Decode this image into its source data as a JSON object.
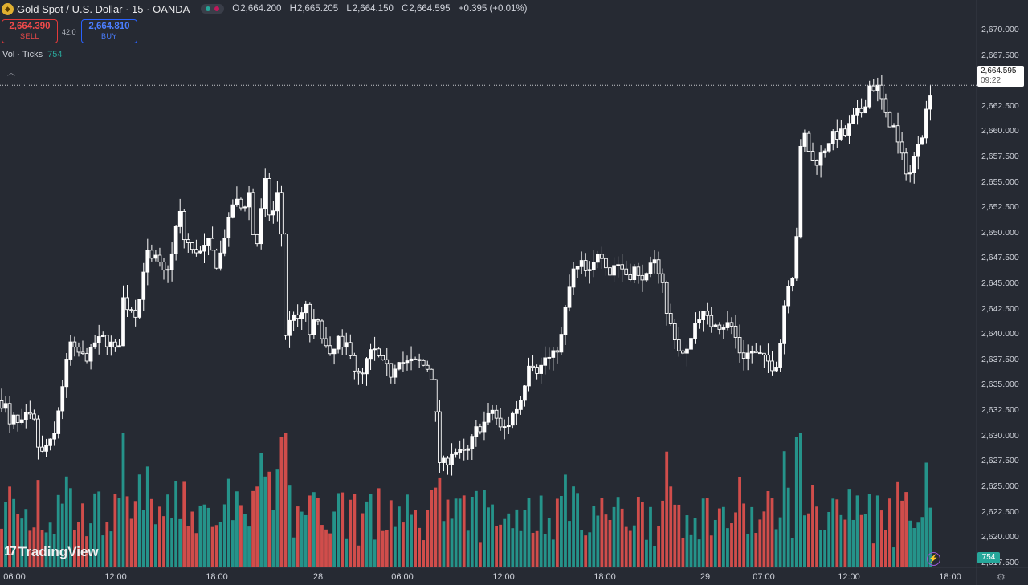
{
  "header": {
    "symbol_title": "Gold Spot / U.S. Dollar · 15 · OANDA",
    "ohlc": {
      "o_label": "O",
      "o": "2,664.200",
      "h_label": "H",
      "h": "2,665.205",
      "l_label": "L",
      "l": "2,664.150",
      "c_label": "C",
      "c": "2,664.595",
      "change": "+0.395 (+0.01%)"
    },
    "sell_price": "2,664.390",
    "sell_label": "SELL",
    "buy_price": "2,664.810",
    "buy_label": "BUY",
    "spread": "42.0",
    "volume_label": "Vol · Ticks",
    "volume_value": "754",
    "logo_text": "TradingView",
    "colors": {
      "up": "#ffffff",
      "up_vol": "#26a69a",
      "down_vol": "#ef5350",
      "sell": "#f04a4a",
      "buy": "#4a7dff",
      "background": "#262a33"
    }
  },
  "price_axis": {
    "ticks": [
      "2,670.000",
      "2,667.500",
      "2,665.000",
      "2,662.500",
      "2,660.000",
      "2,657.500",
      "2,655.000",
      "2,652.500",
      "2,650.000",
      "2,647.500",
      "2,645.000",
      "2,642.500",
      "2,640.000",
      "2,637.500",
      "2,635.000",
      "2,632.500",
      "2,630.000",
      "2,627.500",
      "2,625.000",
      "2,622.500",
      "2,620.000",
      "2,617.500"
    ],
    "last_price": "2,664.595",
    "countdown": "09:22",
    "volume_badge": "754"
  },
  "time_axis": {
    "labels": [
      "06:00",
      "12:00",
      "18:00",
      "28",
      "06:00",
      "12:00",
      "18:00",
      "29",
      "07:00",
      "12:00",
      "18:00"
    ]
  },
  "chart_data": {
    "type": "candlestick",
    "title": "Gold Spot / U.S. Dollar · 15 · OANDA",
    "ylim": [
      2615.5,
      2671.5
    ],
    "last_price": 2664.595,
    "close_path": [
      [
        0,
        2633.5
      ],
      [
        7,
        2633
      ],
      [
        10,
        2630.5
      ],
      [
        15,
        2631.5
      ],
      [
        20,
        2632
      ],
      [
        25,
        2630
      ],
      [
        30,
        2632.5
      ],
      [
        35,
        2631
      ],
      [
        40,
        2632.5
      ],
      [
        45,
        2630
      ],
      [
        50,
        2628
      ],
      [
        55,
        2628.5
      ],
      [
        60,
        2629.5
      ],
      [
        65,
        2629
      ],
      [
        70,
        2631
      ],
      [
        75,
        2634
      ],
      [
        80,
        2636
      ],
      [
        85,
        2638
      ],
      [
        90,
        2640
      ],
      [
        95,
        2637
      ],
      [
        100,
        2639
      ],
      [
        105,
        2637
      ],
      [
        110,
        2638.5
      ],
      [
        115,
        2638
      ],
      [
        120,
        2640
      ],
      [
        125,
        2639
      ],
      [
        130,
        2640
      ],
      [
        135,
        2639
      ],
      [
        140,
        2639
      ],
      [
        145,
        2638
      ],
      [
        150,
        2640
      ],
      [
        155,
        2645
      ],
      [
        160,
        2642
      ],
      [
        165,
        2643
      ],
      [
        170,
        2642
      ],
      [
        175,
        2644
      ],
      [
        180,
        2647.5
      ],
      [
        185,
        2648
      ],
      [
        190,
        2647
      ],
      [
        195,
        2647.5
      ],
      [
        200,
        2646.5
      ],
      [
        205,
        2646
      ],
      [
        210,
        2647
      ],
      [
        215,
        2648
      ],
      [
        220,
        2651
      ],
      [
        225,
        2652
      ],
      [
        230,
        2649
      ],
      [
        235,
        2649
      ],
      [
        240,
        2648
      ],
      [
        245,
        2648.5
      ],
      [
        250,
        2648
      ],
      [
        255,
        2648.5
      ],
      [
        260,
        2649
      ],
      [
        265,
        2648
      ],
      [
        270,
        2647
      ],
      [
        275,
        2648
      ],
      [
        280,
        2650
      ],
      [
        285,
        2651
      ],
      [
        290,
        2653
      ],
      [
        295,
        2653
      ],
      [
        300,
        2652.5
      ],
      [
        305,
        2653
      ],
      [
        310,
        2654
      ],
      [
        315,
        2650
      ],
      [
        320,
        2649
      ],
      [
        325,
        2652
      ],
      [
        330,
        2655
      ],
      [
        335,
        2652
      ],
      [
        340,
        2652
      ],
      [
        345,
        2654
      ],
      [
        350,
        2651
      ],
      [
        355,
        2640
      ],
      [
        360,
        2641
      ],
      [
        365,
        2642.5
      ],
      [
        370,
        2641
      ],
      [
        375,
        2642
      ],
      [
        380,
        2643
      ],
      [
        385,
        2640
      ],
      [
        390,
        2641
      ],
      [
        395,
        2641
      ],
      [
        400,
        2640.5
      ],
      [
        405,
        2639
      ],
      [
        410,
        2637.5
      ],
      [
        415,
        2638
      ],
      [
        420,
        2640
      ],
      [
        425,
        2638
      ],
      [
        430,
        2639
      ],
      [
        435,
        2639
      ],
      [
        440,
        2637
      ],
      [
        445,
        2636
      ],
      [
        450,
        2635.5
      ],
      [
        455,
        2637
      ],
      [
        460,
        2638
      ],
      [
        465,
        2638.5
      ],
      [
        470,
        2638
      ],
      [
        475,
        2637
      ],
      [
        480,
        2637
      ],
      [
        485,
        2636
      ],
      [
        490,
        2636.5
      ],
      [
        495,
        2638
      ],
      [
        500,
        2637.5
      ],
      [
        505,
        2637
      ],
      [
        510,
        2637.5
      ],
      [
        515,
        2637
      ],
      [
        520,
        2637.5
      ],
      [
        525,
        2637
      ],
      [
        530,
        2637
      ],
      [
        535,
        2636.5
      ],
      [
        540,
        2635.5
      ],
      [
        545,
        2628
      ],
      [
        550,
        2627
      ],
      [
        555,
        2627.5
      ],
      [
        560,
        2628
      ],
      [
        565,
        2629
      ],
      [
        570,
        2628
      ],
      [
        575,
        2628.5
      ],
      [
        580,
        2628
      ],
      [
        585,
        2629
      ],
      [
        590,
        2630
      ],
      [
        595,
        2631
      ],
      [
        600,
        2631
      ],
      [
        605,
        2631.5
      ],
      [
        610,
        2632
      ],
      [
        615,
        2633
      ],
      [
        620,
        2631
      ],
      [
        625,
        2630.5
      ],
      [
        630,
        2631
      ],
      [
        635,
        2631.5
      ],
      [
        640,
        2632.5
      ],
      [
        645,
        2633
      ],
      [
        650,
        2634
      ],
      [
        655,
        2636
      ],
      [
        660,
        2638
      ],
      [
        665,
        2637
      ],
      [
        670,
        2636.5
      ],
      [
        675,
        2637
      ],
      [
        680,
        2638
      ],
      [
        685,
        2637.5
      ],
      [
        690,
        2638
      ],
      [
        695,
        2639
      ],
      [
        700,
        2640
      ],
      [
        705,
        2643
      ],
      [
        710,
        2645
      ],
      [
        715,
        2646.5
      ],
      [
        720,
        2646.5
      ],
      [
        725,
        2647
      ],
      [
        730,
        2646
      ],
      [
        735,
        2646
      ],
      [
        740,
        2647
      ],
      [
        745,
        2648.5
      ],
      [
        750,
        2648
      ],
      [
        755,
        2647
      ],
      [
        760,
        2646
      ],
      [
        765,
        2647
      ],
      [
        770,
        2647
      ],
      [
        775,
        2646.5
      ],
      [
        780,
        2646
      ],
      [
        785,
        2646
      ],
      [
        790,
        2646.5
      ],
      [
        795,
        2645.5
      ],
      [
        800,
        2646
      ],
      [
        805,
        2645.5
      ],
      [
        810,
        2646.5
      ],
      [
        815,
        2647
      ],
      [
        820,
        2646.5
      ],
      [
        825,
        2645.5
      ],
      [
        830,
        2642
      ],
      [
        835,
        2641
      ],
      [
        840,
        2640
      ],
      [
        845,
        2638.5
      ],
      [
        850,
        2638
      ],
      [
        855,
        2638
      ],
      [
        860,
        2640
      ],
      [
        865,
        2641
      ],
      [
        870,
        2642
      ],
      [
        875,
        2642
      ],
      [
        880,
        2641.5
      ],
      [
        885,
        2641
      ],
      [
        890,
        2641.5
      ],
      [
        895,
        2641
      ],
      [
        900,
        2641
      ],
      [
        905,
        2641
      ],
      [
        910,
        2641
      ],
      [
        915,
        2640
      ],
      [
        920,
        2638.5
      ],
      [
        925,
        2638
      ],
      [
        930,
        2638
      ],
      [
        935,
        2638.5
      ],
      [
        940,
        2638
      ],
      [
        945,
        2638
      ],
      [
        950,
        2637.5
      ],
      [
        955,
        2637.5
      ],
      [
        960,
        2637
      ],
      [
        965,
        2637
      ],
      [
        970,
        2638
      ],
      [
        975,
        2642
      ],
      [
        980,
        2645
      ],
      [
        985,
        2646
      ],
      [
        990,
        2646
      ],
      [
        995,
        2657
      ],
      [
        1000,
        2660
      ],
      [
        1005,
        2659
      ],
      [
        1010,
        2657
      ],
      [
        1015,
        2657
      ],
      [
        1020,
        2657.5
      ],
      [
        1025,
        2658
      ],
      [
        1030,
        2659
      ],
      [
        1035,
        2659.5
      ],
      [
        1040,
        2659.5
      ],
      [
        1045,
        2660
      ],
      [
        1050,
        2659.5
      ],
      [
        1055,
        2660
      ],
      [
        1060,
        2661
      ],
      [
        1065,
        2661.5
      ],
      [
        1070,
        2662
      ],
      [
        1075,
        2662
      ],
      [
        1080,
        2664
      ],
      [
        1085,
        2665
      ],
      [
        1090,
        2664
      ],
      [
        1095,
        2664.5
      ],
      [
        1100,
        2662
      ],
      [
        1105,
        2661
      ],
      [
        1110,
        2661
      ],
      [
        1115,
        2660
      ],
      [
        1120,
        2658
      ],
      [
        1125,
        2657
      ],
      [
        1130,
        2656
      ],
      [
        1135,
        2656
      ],
      [
        1140,
        2658
      ],
      [
        1145,
        2660
      ],
      [
        1150,
        2660
      ],
      [
        1155,
        2663
      ],
      [
        1160,
        2664.6
      ]
    ],
    "volume_ticks": {
      "scale_note": "relative tick volume",
      "max": 160,
      "last_bar": 754,
      "series_count": 231
    }
  }
}
